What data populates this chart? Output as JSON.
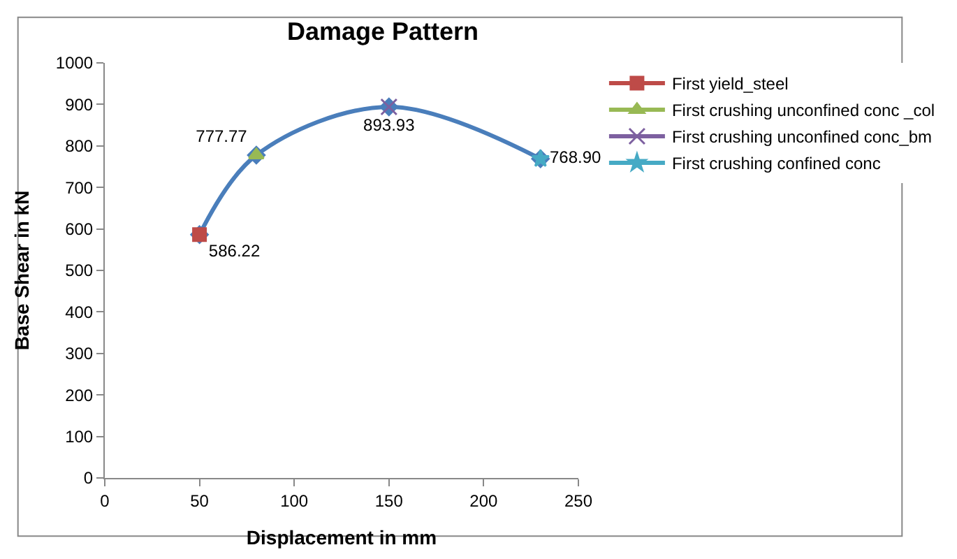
{
  "chart_data": {
    "type": "line",
    "title": "Damage Pattern",
    "xlabel": "Displacement in mm",
    "ylabel": "Base Shear in kN",
    "xlim": [
      0,
      250
    ],
    "xticks": [
      0,
      50,
      100,
      150,
      200,
      250
    ],
    "ylim": [
      0,
      1000
    ],
    "yticks": [
      0,
      100,
      200,
      300,
      400,
      500,
      600,
      700,
      800,
      900,
      1000
    ],
    "legend": "right",
    "line_style": "solid",
    "series": [
      {
        "color": "#4a7ebb",
        "marker": "diamond",
        "x": [
          50,
          80,
          150,
          230
        ],
        "values": [
          586.22,
          777.77,
          893.93,
          768.9
        ]
      },
      {
        "type": "scatter",
        "name": "First yield_steel",
        "color": "#be4b48",
        "marker": "square",
        "x": [
          50
        ],
        "values": [
          586.22
        ],
        "value_labels": [
          "586.22"
        ]
      },
      {
        "type": "scatter",
        "name": "First crushing unconfined conc _col",
        "color": "#98b954",
        "marker": "triangle",
        "x": [
          80
        ],
        "values": [
          777.77
        ],
        "value_labels": [
          "777.77"
        ]
      },
      {
        "type": "scatter",
        "name": "First crushing unconfined conc_bm",
        "color": "#7d60a0",
        "marker": "cross",
        "x": [
          150
        ],
        "values": [
          893.93
        ],
        "value_labels": [
          "893.93"
        ]
      },
      {
        "type": "scatter",
        "name": "First crushing confined conc",
        "color": "#46aac5",
        "marker": "star",
        "x": [
          230
        ],
        "values": [
          768.9
        ],
        "value_labels": [
          "768.90"
        ]
      }
    ]
  }
}
